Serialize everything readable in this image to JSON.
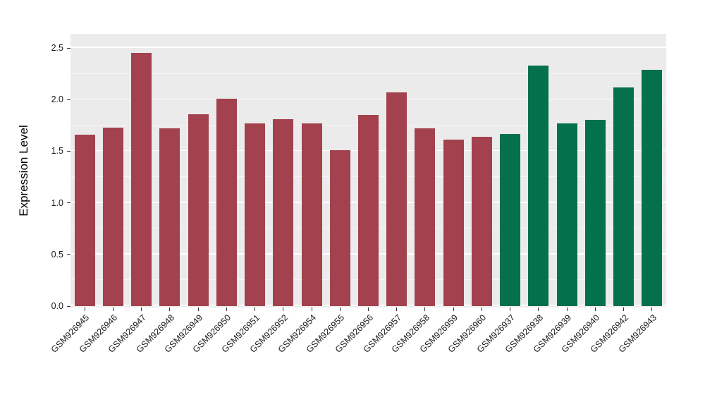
{
  "chart": {
    "ylabel": "Expression Level"
  },
  "chart_data": {
    "type": "bar",
    "title": "",
    "xlabel": "",
    "ylabel": "Expression Level",
    "ylim": [
      0,
      2.5
    ],
    "yticks": [
      0,
      0.5,
      1,
      1.5,
      2,
      2.5
    ],
    "ytick_labels": [
      "0.0",
      "0.5",
      "1.0",
      "1.5",
      "2.0",
      "2.5"
    ],
    "grid": "major-and-minor-white-on-gray",
    "legend": "none",
    "panel_background": "#EBEBEB",
    "categories": [
      "GSM926945",
      "GSM926946",
      "GSM926947",
      "GSM926948",
      "GSM926949",
      "GSM926950",
      "GSM926951",
      "GSM926952",
      "GSM926954",
      "GSM926955",
      "GSM926956",
      "GSM926957",
      "GSM926958",
      "GSM926959",
      "GSM926960",
      "GSM926937",
      "GSM926938",
      "GSM926939",
      "GSM926940",
      "GSM926942",
      "GSM926943"
    ],
    "values": [
      1.66,
      1.73,
      2.45,
      1.72,
      1.86,
      2.01,
      1.77,
      1.81,
      1.77,
      1.51,
      1.85,
      2.07,
      1.72,
      1.61,
      1.64,
      1.67,
      2.33,
      1.77,
      1.8,
      2.12,
      2.29
    ],
    "groups": [
      "red",
      "red",
      "red",
      "red",
      "red",
      "red",
      "red",
      "red",
      "red",
      "red",
      "red",
      "red",
      "red",
      "red",
      "red",
      "green",
      "green",
      "green",
      "green",
      "green",
      "green"
    ],
    "colors": {
      "red": "#A3414E",
      "green": "#05714C"
    }
  }
}
